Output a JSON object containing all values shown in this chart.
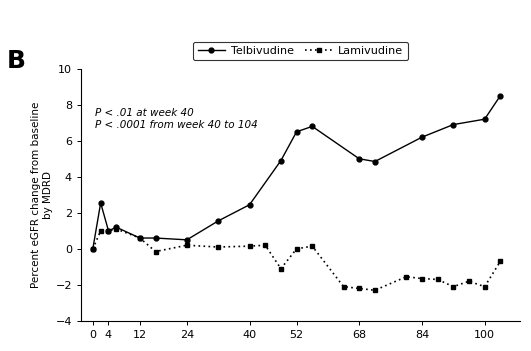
{
  "telbivudine_x": [
    0,
    2,
    4,
    6,
    12,
    16,
    24,
    32,
    40,
    48,
    52,
    56,
    68,
    72,
    84,
    92,
    100,
    104
  ],
  "telbivudine_y": [
    0.0,
    2.55,
    1.0,
    1.2,
    0.6,
    0.6,
    0.5,
    1.55,
    2.45,
    4.9,
    6.5,
    6.8,
    5.0,
    4.85,
    6.2,
    6.9,
    7.2,
    8.5
  ],
  "lamivudine_x": [
    0,
    2,
    4,
    6,
    12,
    16,
    24,
    32,
    40,
    44,
    48,
    52,
    56,
    64,
    68,
    72,
    80,
    84,
    88,
    92,
    96,
    100,
    104
  ],
  "lamivudine_y": [
    0.0,
    1.0,
    1.0,
    1.1,
    0.6,
    -0.15,
    0.2,
    0.1,
    0.15,
    0.2,
    -1.1,
    0.0,
    0.15,
    -2.1,
    -2.2,
    -2.3,
    -1.55,
    -1.65,
    -1.7,
    -2.1,
    -1.8,
    -2.1,
    -0.7
  ],
  "ylabel": "Percent eGFR change from baseline\nby MDRD",
  "annotation_line1": "P < .01 at week 40",
  "annotation_line2": "P < .0001 from week 40 to 104",
  "legend_telbivudine": "Telbivudine",
  "legend_lamivudine": "Lamivudine",
  "panel_label": "B",
  "xlim": [
    -3,
    109
  ],
  "ylim": [
    -4,
    10
  ],
  "xticks": [
    0,
    4,
    12,
    24,
    40,
    52,
    68,
    84,
    100
  ],
  "yticks": [
    -4,
    -2,
    0,
    2,
    4,
    6,
    8,
    10
  ],
  "background_color": "#ffffff",
  "fontsize_axis": 8,
  "fontsize_label": 7.5,
  "fontsize_panel": 18,
  "fontsize_annotation": 7.5,
  "fontsize_legend": 8
}
